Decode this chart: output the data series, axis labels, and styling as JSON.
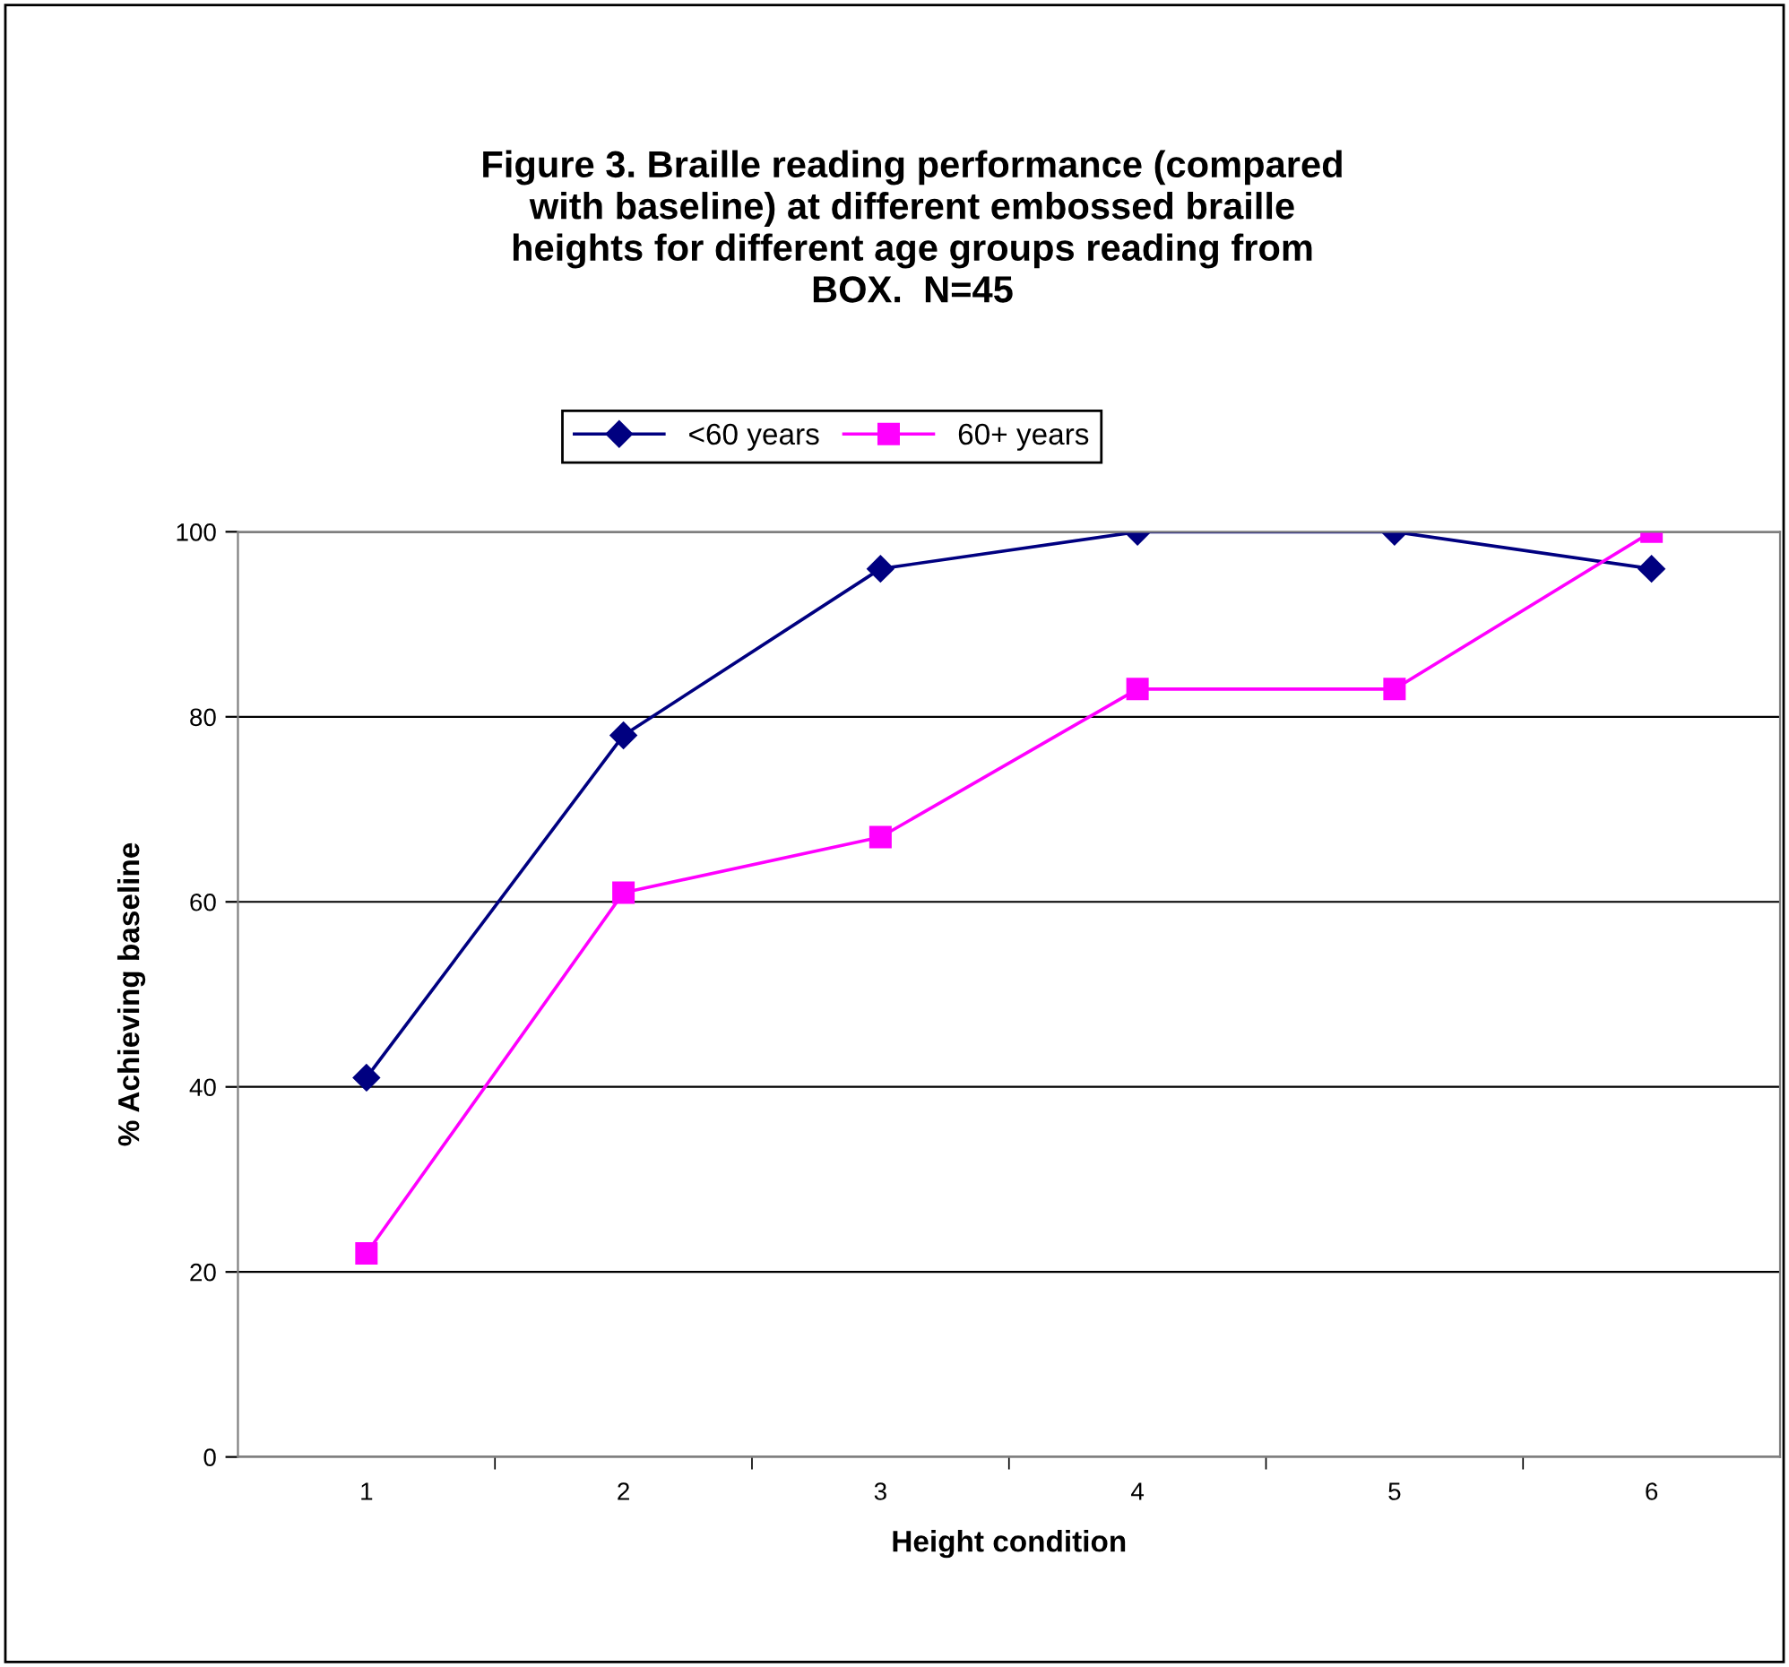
{
  "chart_data": {
    "type": "line",
    "title": "Figure 3. Braille reading performance (compared\nwith baseline) at different embossed braille\nheights for different age groups reading from\nBOX.  N=45",
    "xlabel": "Height condition",
    "ylabel": "% Achieving baseline",
    "categories": [
      "1",
      "2",
      "3",
      "4",
      "5",
      "6"
    ],
    "series": [
      {
        "name": "<60 years",
        "color": "#000080",
        "marker": "diamond",
        "values": [
          41,
          78,
          96,
          100,
          100,
          96
        ]
      },
      {
        "name": "60+ years",
        "color": "#ff00ff",
        "marker": "square",
        "values": [
          22,
          61,
          67,
          83,
          83,
          100
        ]
      }
    ],
    "ylim": [
      0,
      100
    ],
    "yticks": [
      0,
      20,
      40,
      60,
      80,
      100
    ],
    "grid": "y",
    "legend": "top",
    "line_style": "solid"
  }
}
